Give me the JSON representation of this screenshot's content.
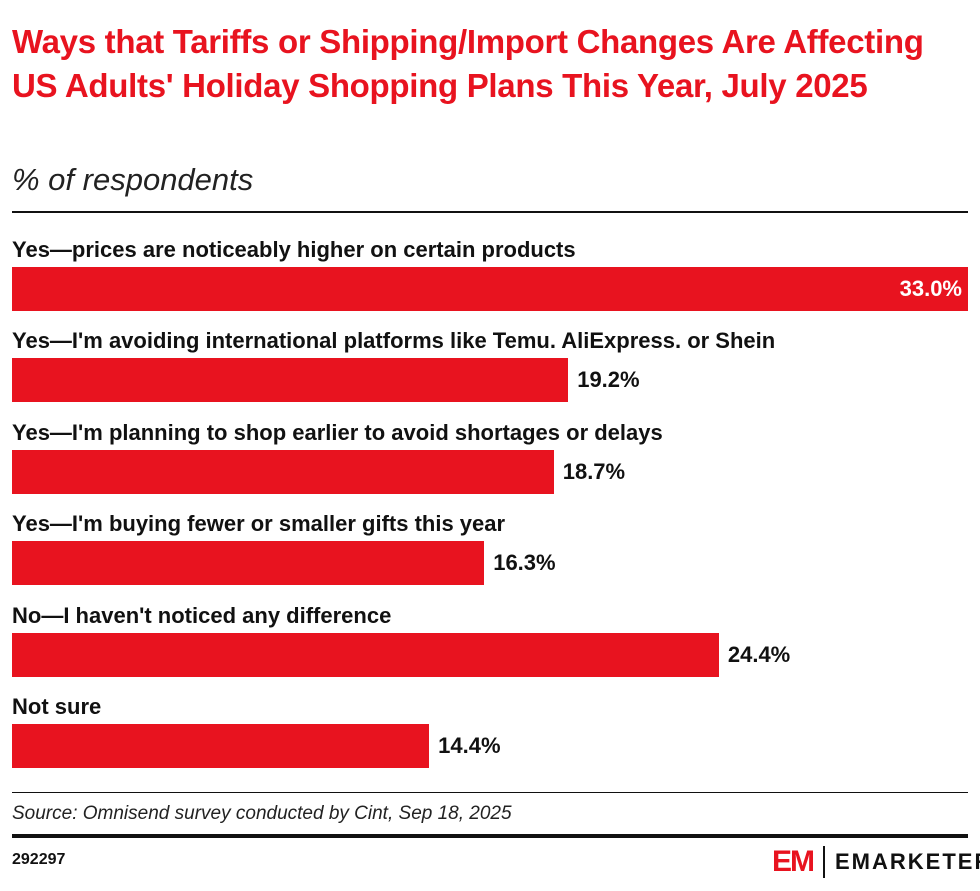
{
  "chart_data": {
    "type": "bar",
    "orientation": "horizontal",
    "title": "Ways that Tariffs or Shipping/Import Changes Are Affecting US Adults' Holiday Shopping Plans This Year, July 2025",
    "subtitle": "% of respondents",
    "categories": [
      "Yes—prices are noticeably higher on certain products",
      "Yes—I'm avoiding international platforms like Temu. AliExpress. or Shein",
      "Yes—I'm planning to shop earlier to avoid shortages or delays",
      "Yes—I'm buying fewer or smaller gifts this year",
      "No—I haven't noticed any difference",
      "Not sure"
    ],
    "values": [
      33.0,
      19.2,
      18.7,
      16.3,
      24.4,
      14.4
    ],
    "value_labels": [
      "33.0%",
      "19.2%",
      "18.7%",
      "16.3%",
      "24.4%",
      "14.4%"
    ],
    "xlim": [
      0,
      33.0
    ],
    "grid": false,
    "bar_color": "#e8131f",
    "title_color": "#e8131f"
  },
  "footer": {
    "source": "Source: Omnisend survey conducted by Cint, Sep 18, 2025",
    "chart_id": "292297",
    "logo_text": "EMARKETER",
    "logo_mark": "EM"
  }
}
